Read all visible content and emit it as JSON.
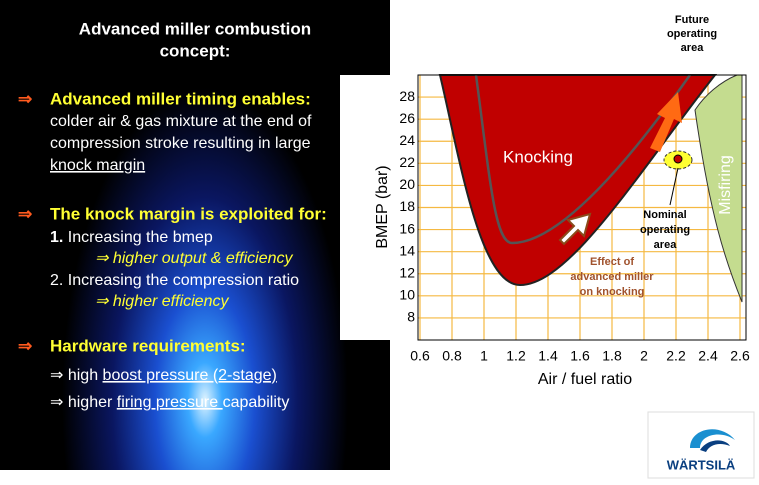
{
  "slide": {
    "title_lines": [
      "Advanced miller combustion",
      "concept:"
    ],
    "sections": [
      {
        "marker": "⇒",
        "heading": "Advanced miller timing enables:",
        "lines": [
          {
            "segments": [
              {
                "text": "colder air & gas mixture at the end of"
              }
            ]
          },
          {
            "segments": [
              {
                "text": "compression stroke resulting in large"
              }
            ]
          },
          {
            "segments": [
              {
                "text": "knock margin",
                "underline": true
              }
            ]
          }
        ]
      },
      {
        "marker": "⇒",
        "heading": "The knock margin is exploited for:",
        "lines": [
          {
            "segments": [
              {
                "text": "1."
              },
              {
                "text": " Increasing the bmep"
              }
            ]
          },
          {
            "style": "sub",
            "segments": [
              {
                "text": "⇒ higher output & efficiency"
              }
            ]
          },
          {
            "segments": [
              {
                "text": "2. Increasing the compression ratio"
              }
            ]
          },
          {
            "style": "sub",
            "segments": [
              {
                "text": "⇒ higher efficiency"
              }
            ]
          }
        ]
      },
      {
        "marker": "⇒",
        "heading": "Hardware requirements:",
        "lines": [
          {
            "segments": [
              {
                "text": "⇒ high "
              },
              {
                "text": "boost pressure (2-stage)",
                "underline": true
              }
            ]
          },
          {
            "segments": [
              {
                "text": "⇒ higher "
              },
              {
                "text": "firing pressure ",
                "underline": true
              },
              {
                "text": "capability"
              }
            ]
          }
        ]
      }
    ]
  },
  "chart": {
    "xlabel": "Air / fuel ratio",
    "ylabel": "BMEP (bar)",
    "xlim": [
      0.6,
      2.6
    ],
    "ylim": [
      6,
      30
    ],
    "xticks": [
      0.6,
      0.8,
      1,
      1.2,
      1.4,
      1.6,
      1.8,
      2,
      2.2,
      2.4,
      2.6
    ],
    "yticks": [
      8,
      10,
      12,
      14,
      16,
      18,
      20,
      22,
      24,
      26,
      28
    ],
    "knocking": "Knocking",
    "misfiring": "Misfiring",
    "nominal": [
      "Nominal",
      "operating",
      "area"
    ],
    "future": [
      "Future",
      "operating",
      "area"
    ],
    "effect": [
      "Effect of",
      "advanced miller",
      "on knocking"
    ]
  },
  "logo": "WÄRTSILÄ"
}
